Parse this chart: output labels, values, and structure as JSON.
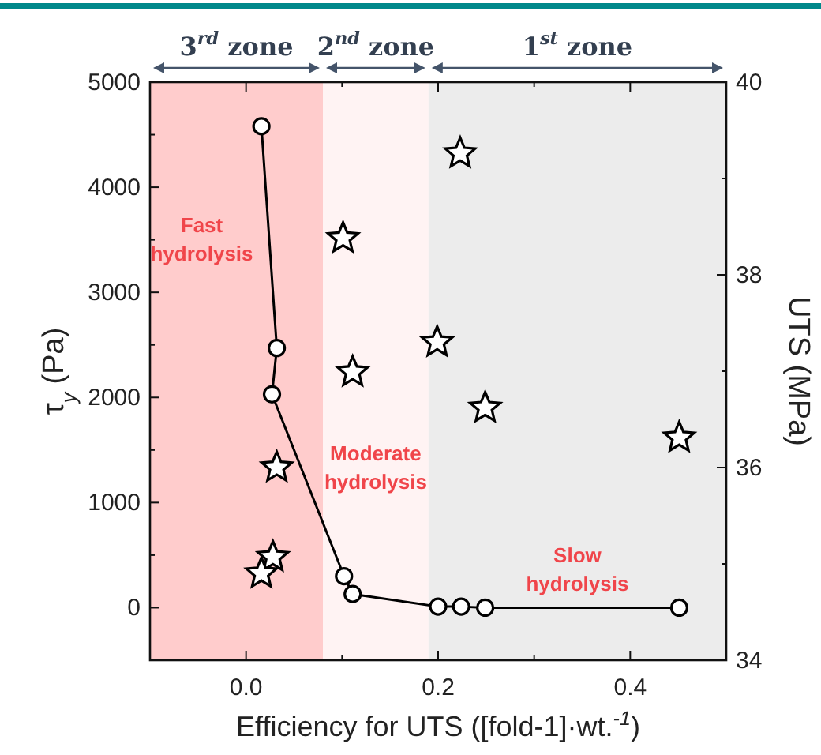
{
  "chart_data": {
    "type": "line",
    "xlabel": "Efficiency for UTS ([fold-1]·wt.$^{-1}$)",
    "ylabel": "τ$_{y}$ (Pa)",
    "y2label": "UTS (MPa)",
    "xlim": [
      -0.1,
      0.5
    ],
    "xticks": [
      {
        "value": -0.1,
        "label": null
      },
      {
        "value": 0,
        "label": "0.0"
      },
      {
        "value": 0.1,
        "label": null
      },
      0.2,
      {
        "value": 0.3,
        "label": null
      },
      0.4,
      {
        "value": 0.5,
        "label": null
      }
    ],
    "ylim": [
      -500,
      5000
    ],
    "yticks": [
      {
        "value": -500,
        "label": null
      },
      0,
      {
        "value": 500,
        "label": null
      },
      1000,
      {
        "value": 1500,
        "label": null
      },
      2000,
      {
        "value": 2500,
        "label": null
      },
      3000,
      {
        "value": 3500,
        "label": null
      },
      4000,
      {
        "value": 4500,
        "label": null
      },
      5000
    ],
    "y2lim": [
      34,
      40
    ],
    "y2ticks": [
      34,
      {
        "value": 35,
        "label": null
      },
      36,
      {
        "value": 37,
        "label": null
      },
      38,
      {
        "value": 39,
        "label": null
      },
      40
    ],
    "series": [
      {
        "marker": "circle",
        "line_style": "solid",
        "color": "#000000",
        "x": [
          0.016,
          0.032,
          0.027,
          0.102,
          0.111,
          0.2,
          0.224,
          0.249,
          0.451
        ],
        "values": [
          4580,
          2470,
          2030,
          300,
          130,
          10,
          10,
          0,
          0
        ]
      },
      {
        "type": "scatter",
        "marker": "star",
        "axis": "y2",
        "color": "#000000",
        "x": [
          0.223,
          0.101,
          0.199,
          0.111,
          0.249,
          0.451,
          0.032,
          0.028,
          0.016
        ],
        "values": [
          39.26,
          38.38,
          37.3,
          36.99,
          36.62,
          36.31,
          36.0,
          35.07,
          34.9
        ]
      }
    ],
    "bands": [
      {
        "axis": "x",
        "from": -0.1,
        "to": 0.08,
        "label": "3$^{rd}$ zone",
        "color": "#ffcccc"
      },
      {
        "axis": "x",
        "from": 0.08,
        "to": 0.19,
        "label": "2$^{nd}$ zone",
        "color": "#fff3f3"
      },
      {
        "axis": "x",
        "from": 0.19,
        "to": 0.5,
        "label": "1$^{st}$ zone",
        "color": "#ececec"
      }
    ],
    "annotations": [
      "Fast hydrolysis",
      "Moderate hydrolysis",
      "Slow hydrolysis"
    ],
    "grid": false
  }
}
